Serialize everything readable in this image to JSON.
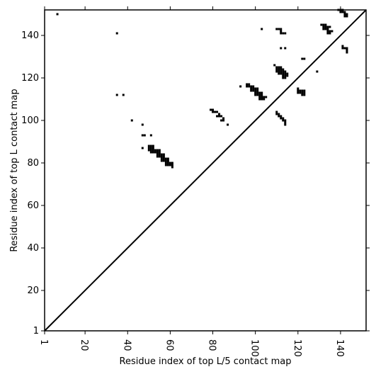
{
  "chart_data": {
    "type": "scatter",
    "xlabel": "Residue index of top L/5 contact map",
    "ylabel": "Residue index of top L contact map",
    "xlim": [
      1,
      152
    ],
    "ylim": [
      1,
      152
    ],
    "x_ticks": [
      1,
      20,
      40,
      60,
      80,
      100,
      120,
      140
    ],
    "y_ticks": [
      1,
      20,
      40,
      60,
      80,
      100,
      120,
      140
    ],
    "diagonal_line": true,
    "grid": false,
    "marker": "square",
    "marker_color": "#000000",
    "line_color": "#000000",
    "points": [
      [
        7,
        150
      ],
      [
        35,
        141
      ],
      [
        35,
        112
      ],
      [
        38,
        112
      ],
      [
        42,
        100
      ],
      [
        47,
        98
      ],
      [
        47,
        93
      ],
      [
        48,
        93
      ],
      [
        51,
        93
      ],
      [
        47,
        87
      ],
      [
        50,
        88
      ],
      [
        51,
        88
      ],
      [
        52,
        88
      ],
      [
        50,
        87
      ],
      [
        51,
        87
      ],
      [
        52,
        87
      ],
      [
        50,
        86
      ],
      [
        51,
        86
      ],
      [
        52,
        86
      ],
      [
        53,
        86
      ],
      [
        54,
        86
      ],
      [
        55,
        86
      ],
      [
        51,
        85
      ],
      [
        52,
        85
      ],
      [
        53,
        85
      ],
      [
        54,
        85
      ],
      [
        55,
        85
      ],
      [
        54,
        84
      ],
      [
        55,
        84
      ],
      [
        56,
        84
      ],
      [
        57,
        84
      ],
      [
        54,
        83
      ],
      [
        55,
        83
      ],
      [
        56,
        83
      ],
      [
        57,
        83
      ],
      [
        56,
        82
      ],
      [
        57,
        82
      ],
      [
        58,
        82
      ],
      [
        59,
        82
      ],
      [
        56,
        81
      ],
      [
        57,
        81
      ],
      [
        58,
        81
      ],
      [
        59,
        81
      ],
      [
        58,
        80
      ],
      [
        59,
        80
      ],
      [
        60,
        80
      ],
      [
        61,
        80
      ],
      [
        58,
        79
      ],
      [
        59,
        79
      ],
      [
        60,
        79
      ],
      [
        61,
        79
      ],
      [
        61,
        78
      ],
      [
        79,
        105
      ],
      [
        80,
        105
      ],
      [
        80,
        104
      ],
      [
        81,
        104
      ],
      [
        82,
        104
      ],
      [
        83,
        103
      ],
      [
        82,
        102
      ],
      [
        83,
        102
      ],
      [
        84,
        102
      ],
      [
        85,
        101
      ],
      [
        84,
        100
      ],
      [
        85,
        100
      ],
      [
        87,
        98
      ],
      [
        93,
        116
      ],
      [
        96,
        117
      ],
      [
        97,
        117
      ],
      [
        96,
        116
      ],
      [
        97,
        116
      ],
      [
        98,
        116
      ],
      [
        99,
        116
      ],
      [
        98,
        115
      ],
      [
        99,
        115
      ],
      [
        100,
        115
      ],
      [
        101,
        115
      ],
      [
        98,
        114
      ],
      [
        99,
        114
      ],
      [
        100,
        114
      ],
      [
        101,
        114
      ],
      [
        100,
        113
      ],
      [
        101,
        113
      ],
      [
        102,
        113
      ],
      [
        103,
        113
      ],
      [
        100,
        112
      ],
      [
        101,
        112
      ],
      [
        102,
        112
      ],
      [
        103,
        112
      ],
      [
        102,
        111
      ],
      [
        103,
        111
      ],
      [
        104,
        111
      ],
      [
        105,
        111
      ],
      [
        102,
        110
      ],
      [
        103,
        110
      ],
      [
        104,
        110
      ],
      [
        103,
        143
      ],
      [
        110,
        143
      ],
      [
        111,
        143
      ],
      [
        112,
        143
      ],
      [
        112,
        142
      ],
      [
        112,
        141
      ],
      [
        113,
        141
      ],
      [
        114,
        141
      ],
      [
        112,
        134
      ],
      [
        114,
        134
      ],
      [
        109,
        126
      ],
      [
        110,
        125
      ],
      [
        111,
        125
      ],
      [
        112,
        125
      ],
      [
        110,
        124
      ],
      [
        111,
        124
      ],
      [
        112,
        124
      ],
      [
        113,
        124
      ],
      [
        110,
        123
      ],
      [
        111,
        123
      ],
      [
        112,
        123
      ],
      [
        113,
        123
      ],
      [
        114,
        123
      ],
      [
        111,
        122
      ],
      [
        112,
        122
      ],
      [
        113,
        122
      ],
      [
        114,
        122
      ],
      [
        115,
        122
      ],
      [
        113,
        121
      ],
      [
        114,
        121
      ],
      [
        115,
        121
      ],
      [
        113,
        120
      ],
      [
        114,
        120
      ],
      [
        110,
        104
      ],
      [
        110,
        103
      ],
      [
        111,
        103
      ],
      [
        111,
        102
      ],
      [
        112,
        102
      ],
      [
        112,
        101
      ],
      [
        113,
        101
      ],
      [
        113,
        100
      ],
      [
        114,
        100
      ],
      [
        114,
        99
      ],
      [
        114,
        98
      ],
      [
        120,
        115
      ],
      [
        120,
        114
      ],
      [
        121,
        114
      ],
      [
        122,
        114
      ],
      [
        123,
        114
      ],
      [
        120,
        113
      ],
      [
        121,
        113
      ],
      [
        122,
        113
      ],
      [
        123,
        113
      ],
      [
        122,
        112
      ],
      [
        123,
        112
      ],
      [
        122,
        129
      ],
      [
        123,
        129
      ],
      [
        129,
        123
      ],
      [
        131,
        145
      ],
      [
        132,
        145
      ],
      [
        133,
        145
      ],
      [
        132,
        144
      ],
      [
        133,
        144
      ],
      [
        134,
        144
      ],
      [
        135,
        144
      ],
      [
        132,
        143
      ],
      [
        133,
        143
      ],
      [
        134,
        143
      ],
      [
        134,
        142
      ],
      [
        135,
        142
      ],
      [
        136,
        142
      ],
      [
        134,
        141
      ],
      [
        135,
        141
      ],
      [
        139,
        152
      ],
      [
        140,
        152
      ],
      [
        141,
        152
      ],
      [
        140,
        151
      ],
      [
        141,
        151
      ],
      [
        142,
        151
      ],
      [
        142,
        150
      ],
      [
        143,
        150
      ],
      [
        142,
        149
      ],
      [
        143,
        149
      ],
      [
        141,
        135
      ],
      [
        141,
        134
      ],
      [
        142,
        134
      ],
      [
        143,
        134
      ],
      [
        143,
        133
      ],
      [
        143,
        132
      ]
    ]
  }
}
